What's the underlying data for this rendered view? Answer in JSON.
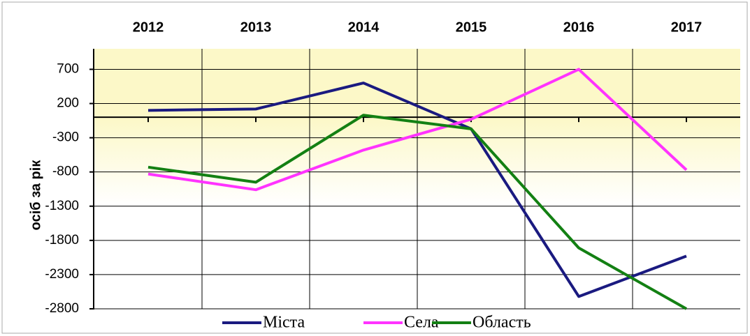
{
  "chart_data": {
    "type": "line",
    "y_axis_label": "осіб за рік",
    "categories": [
      "2012",
      "2013",
      "2014",
      "2015",
      "2016",
      "2017"
    ],
    "series": [
      {
        "name": "Міста",
        "color": "#1a1a80",
        "values": [
          100,
          120,
          500,
          -170,
          -2620,
          -2030
        ]
      },
      {
        "name": "Села",
        "color": "#ff33ff",
        "values": [
          -830,
          -1060,
          -480,
          -30,
          700,
          -770
        ]
      },
      {
        "name": "Область",
        "color": "#138013",
        "values": [
          -730,
          -950,
          30,
          -170,
          -1910,
          -2800
        ]
      }
    ],
    "ylim": [
      -2800,
      1000
    ],
    "yticks": [
      700,
      200,
      -300,
      -800,
      -1300,
      -1800,
      -2300,
      -2800
    ],
    "grid": true,
    "legend": "bottom"
  }
}
